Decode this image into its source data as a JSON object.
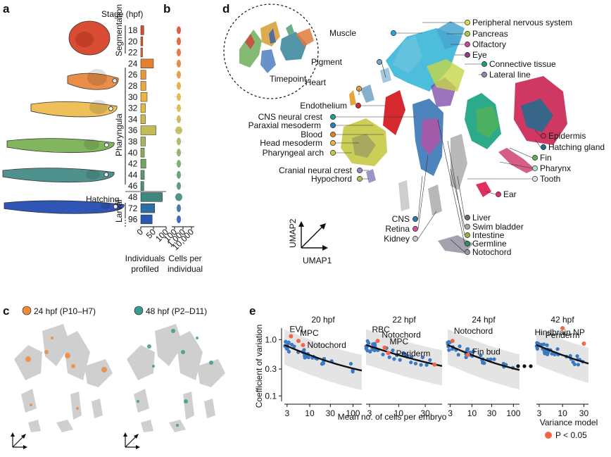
{
  "panel_labels": [
    "a",
    "b",
    "c",
    "d",
    "e"
  ],
  "panel_a": {
    "stage_header": "Stage (hpf)",
    "stages": [
      "18",
      "20",
      "22",
      "24",
      "26",
      "28",
      "30",
      "32",
      "34",
      "36",
      "38",
      "40",
      "42",
      "44",
      "46",
      "48",
      "72",
      "96"
    ],
    "stage_colors": [
      "#d94b2f",
      "#e0592f",
      "#e36a31",
      "#e47f30",
      "#e89637",
      "#eaa73d",
      "#e8b443",
      "#dcba48",
      "#c9b94e",
      "#c2bc56",
      "#a4b65b",
      "#8dac5f",
      "#72a563",
      "#5c9a6b",
      "#4f8f76",
      "#3f8580",
      "#2f6ea2",
      "#2a58b1"
    ],
    "groups": [
      "Segmentation",
      "Pharyngula",
      "Hatching",
      "Larval"
    ],
    "embryo_colors": [
      "#d84c33",
      "#e98e48",
      "#efc05a",
      "#82b65e",
      "#4f928d",
      "#2f55b6"
    ]
  },
  "panel_b": {
    "axis1_title": [
      "Individuals",
      "profiled"
    ],
    "axis1_ticks": [
      "0",
      "50",
      "100"
    ],
    "axis2_title": [
      "Cells per",
      "individual"
    ],
    "axis2_ticks": [
      "100",
      "1,000",
      "10,000"
    ]
  },
  "chart_data": [
    {
      "type": "bar",
      "panel": "b",
      "categories": [
        "18",
        "20",
        "22",
        "24",
        "26",
        "28",
        "30",
        "32",
        "34",
        "36",
        "38",
        "40",
        "42",
        "44",
        "46",
        "48",
        "72",
        "96"
      ],
      "values": [
        12,
        8,
        7,
        50,
        20,
        20,
        25,
        18,
        18,
        60,
        18,
        14,
        20,
        14,
        12,
        85,
        55,
        45
      ],
      "xlabel": "Individuals profiled",
      "xlim": [
        0,
        100
      ]
    },
    {
      "type": "scatter",
      "panel": "e",
      "facets": [
        "20 hpf",
        "22 hpf",
        "24 hpf",
        "42 hpf"
      ],
      "xlabel": "Mean no. of cells per embryo",
      "ylabel": "Coefficient of variation",
      "x_scale": "log",
      "y_scale": "log",
      "yticks": [
        "0.1",
        "0.3",
        "1.0"
      ],
      "facet_xticks": [
        [
          "3",
          "10",
          "30",
          "100"
        ],
        [
          "3",
          "10",
          "30"
        ],
        [
          "3",
          "10",
          "30",
          "100"
        ],
        [
          "3",
          "10",
          "30"
        ]
      ],
      "highlighted": [
        [
          {
            "label": "EVL"
          },
          {
            "label": "MPC"
          },
          {
            "label": "Notochord"
          }
        ],
        [
          {
            "label": "RBC"
          },
          {
            "label": "Notochord"
          },
          {
            "label": "MPC"
          },
          {
            "label": "Periderm"
          }
        ],
        [
          {
            "label": "Notochord"
          },
          {
            "label": "Fin bud"
          }
        ],
        [
          {
            "label": "Hindbrain NP"
          },
          {
            "label": "Periderm"
          }
        ]
      ],
      "legend": {
        "title": "Variance model",
        "entry": "P < 0.05"
      },
      "colors": {
        "points": "#3a79c3",
        "significant": "#f26548",
        "model": "#111111",
        "band": "#e4e4e4"
      }
    }
  ],
  "panel_c": {
    "legend": [
      {
        "label": "24 hpf (P10–H7)",
        "color": "#f08a3c"
      },
      {
        "label": "48 hpf (P2–D11)",
        "color": "#3a9a8f"
      }
    ]
  },
  "panel_d": {
    "inset_label": "Timepoint",
    "umap_axes": [
      "UMAP1",
      "UMAP2"
    ],
    "left_labels": [
      {
        "text": "Muscle",
        "color": "#25aad1"
      },
      {
        "text": "Pigment",
        "color": "#6fa7cf"
      },
      {
        "text": "Heart",
        "color": "#e8a33a"
      },
      {
        "text": "Endothelium",
        "color": "#d2272d"
      },
      {
        "text": "CNS neural crest",
        "color": "#1f9e8a"
      },
      {
        "text": "Paraxial mesoderm",
        "color": "#2b7fb5"
      },
      {
        "text": "Blood",
        "color": "#e57e2d"
      },
      {
        "text": "Head mesoderm",
        "color": "#e4b54a"
      },
      {
        "text": "Pharyngeal arch",
        "color": "#c7c74c"
      },
      {
        "text": "Cranial neural crest",
        "color": "#8e8bc2"
      },
      {
        "text": "Hypochord",
        "color": "#b9bc55"
      }
    ],
    "right_labels": [
      {
        "text": "Peripheral nervous system",
        "color": "#d9e04c"
      },
      {
        "text": "Pancreas",
        "color": "#a6cf48"
      },
      {
        "text": "Olfactory",
        "color": "#c34a9b"
      },
      {
        "text": "Eye",
        "color": "#8d3a8c"
      },
      {
        "text": "Connective tissue",
        "color": "#1c9c7c"
      },
      {
        "text": "Lateral line",
        "color": "#9d7bc0"
      },
      {
        "text": "Epidermis",
        "color": "#c92a5a"
      },
      {
        "text": "Hatching gland",
        "color": "#1b6e8f"
      },
      {
        "text": "Fin",
        "color": "#59b05a"
      },
      {
        "text": "Pharynx",
        "color": "#ade0d0"
      },
      {
        "text": "Tooth",
        "color": "#e0e0e0"
      },
      {
        "text": "Ear",
        "color": "#e3305e"
      }
    ],
    "bottom_labels": [
      {
        "text": "CNS",
        "color": "#2a7ab0"
      },
      {
        "text": "Retina",
        "color": "#d34fa2"
      },
      {
        "text": "Kidney",
        "color": "#c9c9c9"
      },
      {
        "text": "Liver",
        "color": "#6e6e6e"
      },
      {
        "text": "Swim bladder",
        "color": "#a9a9a9"
      },
      {
        "text": "Intestine",
        "color": "#96b245"
      },
      {
        "text": "Germline",
        "color": "#2f8f57"
      },
      {
        "text": "Notochord",
        "color": "#999999"
      }
    ]
  }
}
